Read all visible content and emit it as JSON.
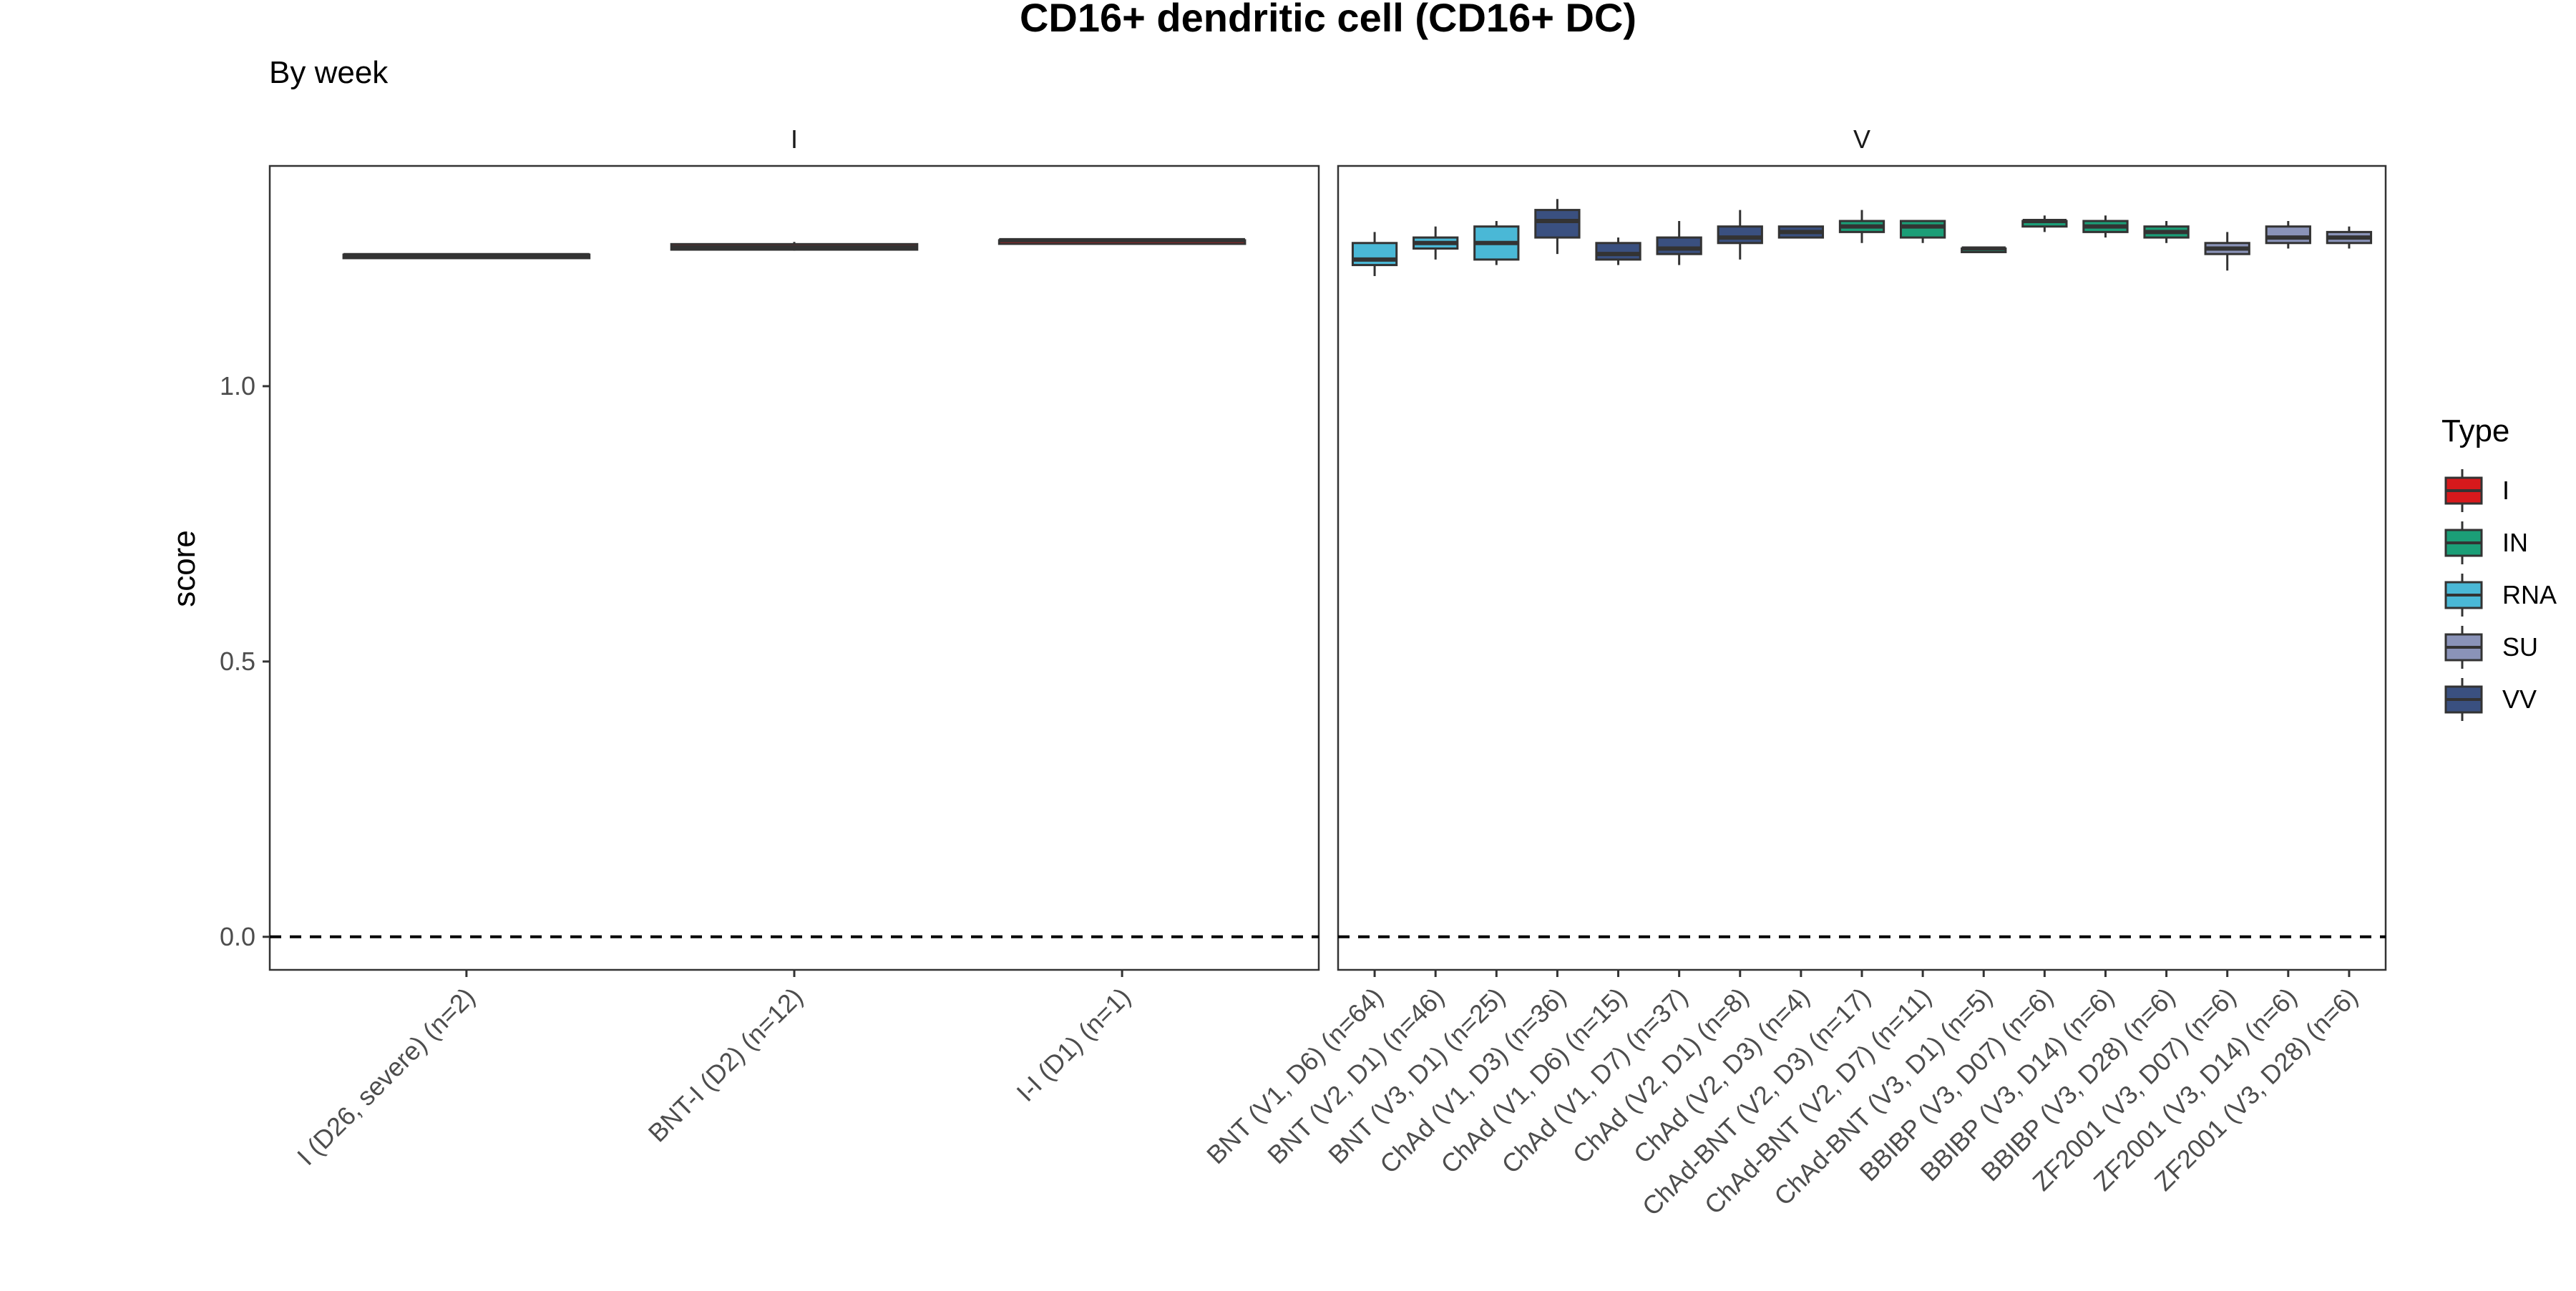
{
  "chart_data": {
    "type": "box",
    "title": "CD16+ dendritic cell (CD16+ DC)",
    "subtitle": "By week",
    "ylabel": "score",
    "xlabel": "",
    "ylim": [
      -0.06,
      1.4
    ],
    "yticks": [
      0.0,
      0.5,
      1.0
    ],
    "yticklabels": [
      "0.0",
      "0.5",
      "1.0"
    ],
    "reference_line": 0.0,
    "grid": false,
    "legend": {
      "title": "Type",
      "position": "right",
      "entries": [
        {
          "label": "I",
          "color": "#d7191c"
        },
        {
          "label": "IN",
          "color": "#1b9e77"
        },
        {
          "label": "RNA",
          "color": "#4ab8d6"
        },
        {
          "label": "SU",
          "color": "#8a93b8"
        },
        {
          "label": "VV",
          "color": "#3a5080"
        }
      ]
    },
    "panels": [
      {
        "strip": "I",
        "boxes": [
          {
            "label": "I (D26, severe) (n=2)",
            "type": "I",
            "min": 1.237,
            "q1": 1.237,
            "median": 1.238,
            "q3": 1.239,
            "max": 1.239
          },
          {
            "label": "BNT-I (D2) (n=12)",
            "type": "I",
            "min": 1.246,
            "q1": 1.248,
            "median": 1.252,
            "q3": 1.258,
            "max": 1.262
          },
          {
            "label": "I-I (D1) (n=1)",
            "type": "I",
            "min": 1.265,
            "q1": 1.265,
            "median": 1.265,
            "q3": 1.265,
            "max": 1.265
          }
        ]
      },
      {
        "strip": "V",
        "boxes": [
          {
            "label": "BNT (V1, D6) (n=64)",
            "type": "RNA",
            "min": 1.2,
            "q1": 1.22,
            "median": 1.23,
            "q3": 1.26,
            "max": 1.28
          },
          {
            "label": "BNT (V2, D1) (n=46)",
            "type": "RNA",
            "min": 1.23,
            "q1": 1.25,
            "median": 1.26,
            "q3": 1.27,
            "max": 1.29
          },
          {
            "label": "BNT (V3, D1) (n=25)",
            "type": "RNA",
            "min": 1.22,
            "q1": 1.23,
            "median": 1.26,
            "q3": 1.29,
            "max": 1.3
          },
          {
            "label": "ChAd (V1, D3) (n=36)",
            "type": "VV",
            "min": 1.24,
            "q1": 1.27,
            "median": 1.3,
            "q3": 1.32,
            "max": 1.34
          },
          {
            "label": "ChAd (V1, D6) (n=15)",
            "type": "VV",
            "min": 1.22,
            "q1": 1.23,
            "median": 1.24,
            "q3": 1.26,
            "max": 1.27
          },
          {
            "label": "ChAd (V1, D7) (n=37)",
            "type": "VV",
            "min": 1.22,
            "q1": 1.24,
            "median": 1.25,
            "q3": 1.27,
            "max": 1.3
          },
          {
            "label": "ChAd (V2, D1) (n=8)",
            "type": "VV",
            "min": 1.23,
            "q1": 1.26,
            "median": 1.27,
            "q3": 1.29,
            "max": 1.32
          },
          {
            "label": "ChAd (V2, D3) (n=4)",
            "type": "VV",
            "min": 1.27,
            "q1": 1.27,
            "median": 1.28,
            "q3": 1.29,
            "max": 1.29
          },
          {
            "label": "ChAd-BNT (V2, D3) (n=17)",
            "type": "IN",
            "min": 1.26,
            "q1": 1.28,
            "median": 1.29,
            "q3": 1.3,
            "max": 1.32
          },
          {
            "label": "ChAd-BNT (V2, D7) (n=11)",
            "type": "IN",
            "min": 1.26,
            "q1": 1.27,
            "median": 1.29,
            "q3": 1.3,
            "max": 1.3
          },
          {
            "label": "ChAd-BNT (V3, D1) (n=5)",
            "type": "IN",
            "min": 1.25,
            "q1": 1.25,
            "median": 1.25,
            "q3": 1.25,
            "max": 1.25
          },
          {
            "label": "BBIBP (V3, D07) (n=6)",
            "type": "IN",
            "min": 1.28,
            "q1": 1.29,
            "median": 1.3,
            "q3": 1.3,
            "max": 1.31
          },
          {
            "label": "BBIBP (V3, D14) (n=6)",
            "type": "IN",
            "min": 1.27,
            "q1": 1.28,
            "median": 1.29,
            "q3": 1.3,
            "max": 1.31
          },
          {
            "label": "BBIBP (V3, D28) (n=6)",
            "type": "IN",
            "min": 1.26,
            "q1": 1.27,
            "median": 1.28,
            "q3": 1.29,
            "max": 1.3
          },
          {
            "label": "ZF2001 (V3, D07) (n=6)",
            "type": "SU",
            "min": 1.21,
            "q1": 1.24,
            "median": 1.25,
            "q3": 1.26,
            "max": 1.28
          },
          {
            "label": "ZF2001 (V3, D14) (n=6)",
            "type": "SU",
            "min": 1.25,
            "q1": 1.26,
            "median": 1.27,
            "q3": 1.29,
            "max": 1.3
          },
          {
            "label": "ZF2001 (V3, D28) (n=6)",
            "type": "SU",
            "min": 1.25,
            "q1": 1.26,
            "median": 1.27,
            "q3": 1.28,
            "max": 1.29
          }
        ]
      }
    ]
  }
}
